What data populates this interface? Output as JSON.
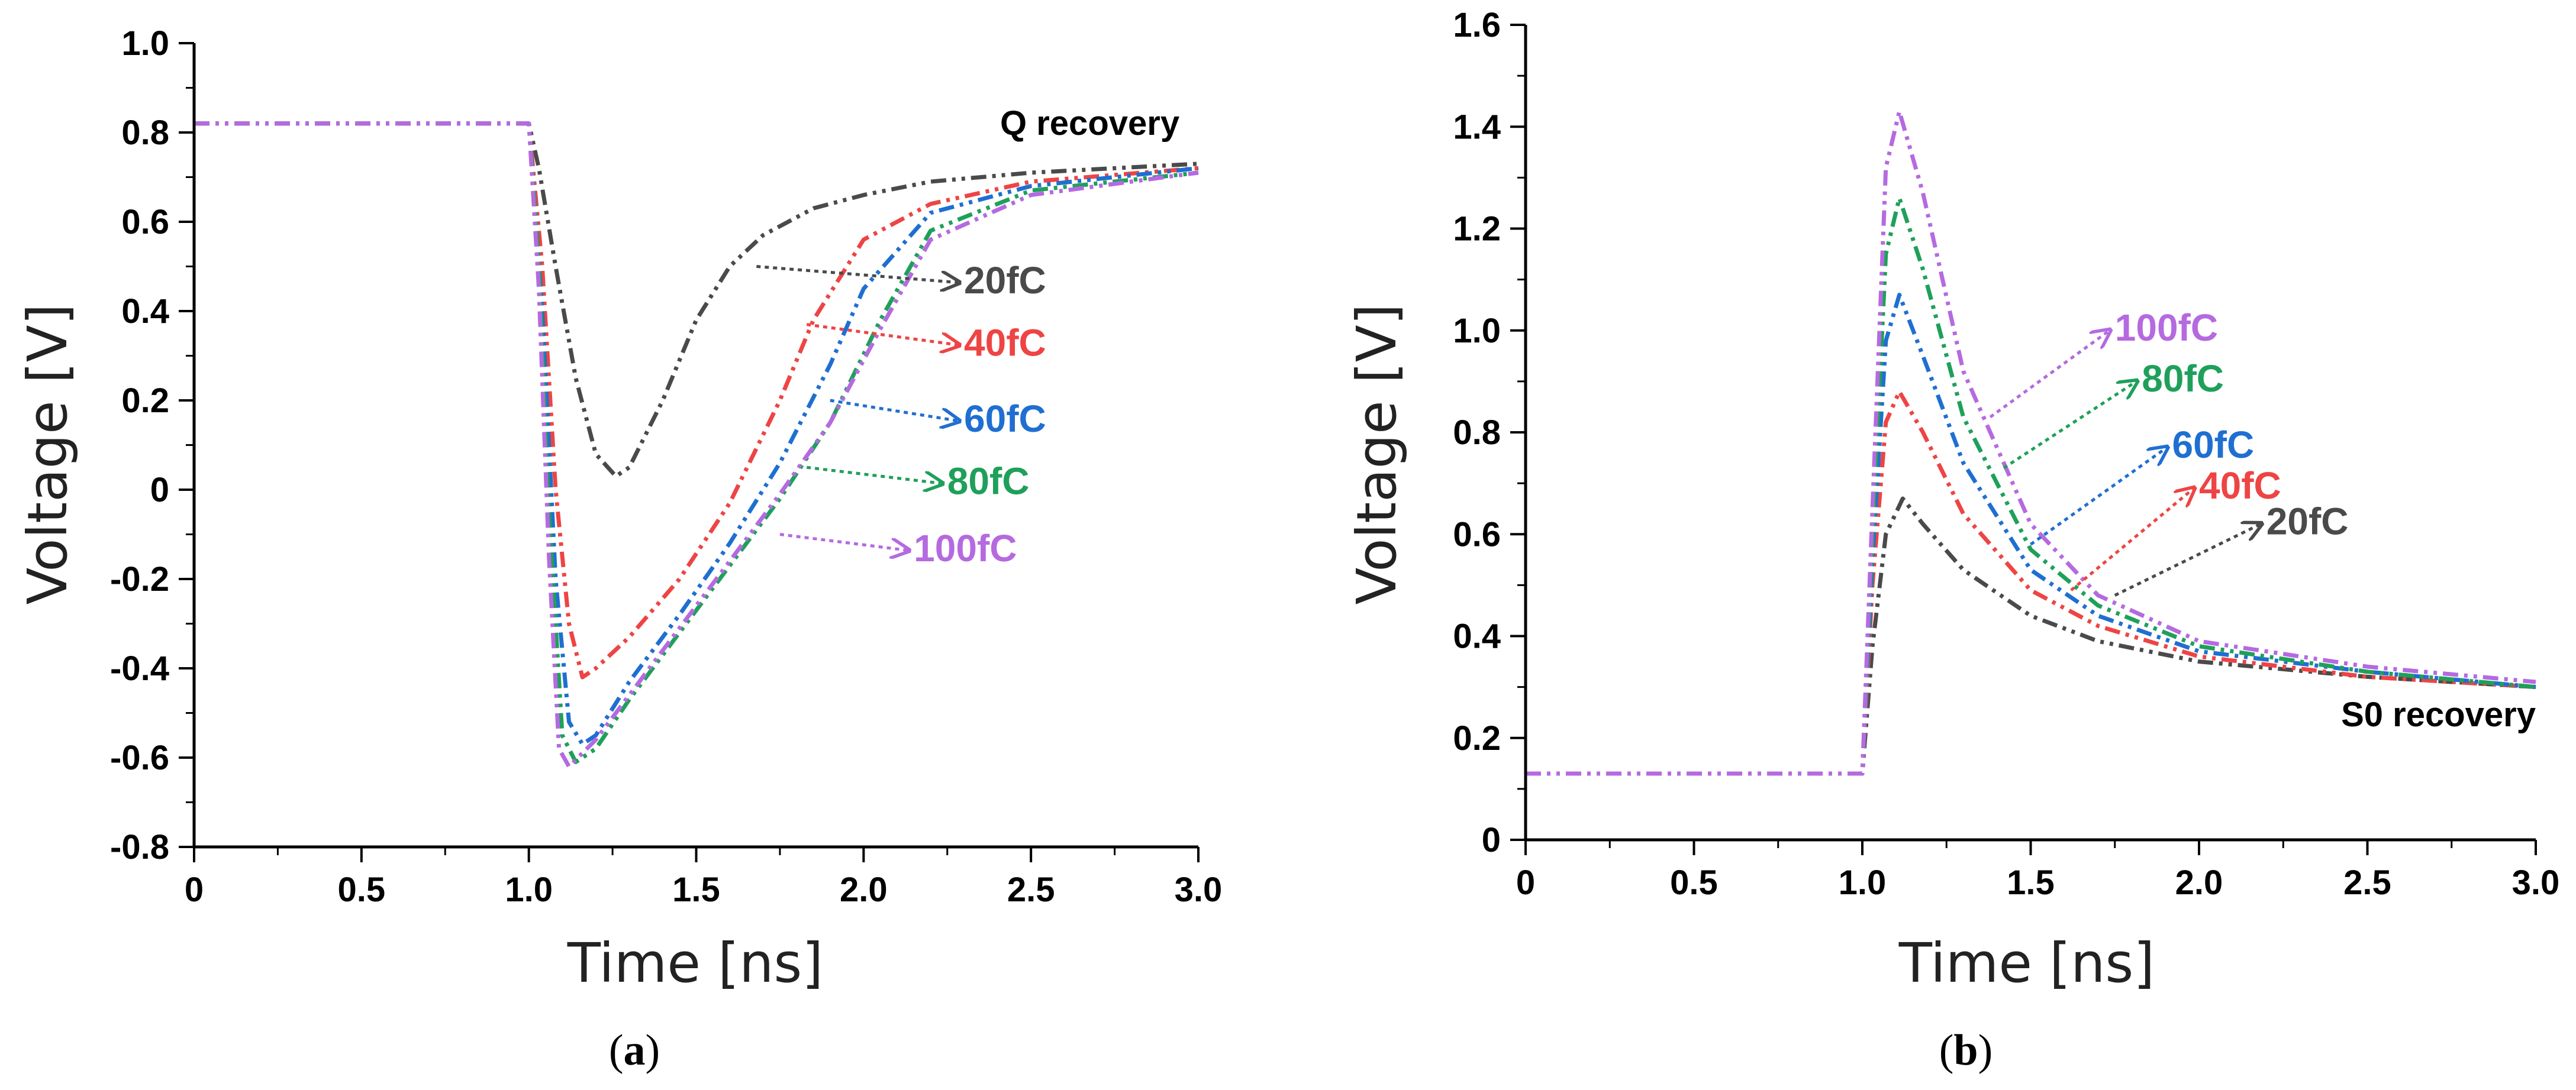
{
  "chart_data": [
    {
      "type": "line",
      "panel": "(a)",
      "panel_letter": "a",
      "annotation": "Q recovery",
      "xlabel": "Time [ns]",
      "ylabel": "Voltage [V]",
      "xlim": [
        0,
        3.0
      ],
      "ylim": [
        -0.8,
        1.0
      ],
      "x_ticks": [
        0,
        0.5,
        1.0,
        1.5,
        2.0,
        2.5,
        3.0
      ],
      "x_tick_labels": [
        "0",
        "0.5",
        "1.0",
        "1.5",
        "2.0",
        "2.5",
        "3.0"
      ],
      "y_ticks": [
        -0.8,
        -0.6,
        -0.4,
        -0.2,
        0,
        0.2,
        0.4,
        0.6,
        0.8,
        1.0
      ],
      "y_tick_labels": [
        "-0.8",
        "-0.6",
        "-0.4",
        "-0.2",
        "0",
        "0.2",
        "0.4",
        "0.6",
        "0.8",
        "1.0"
      ],
      "series": [
        {
          "name": "20fC",
          "color": "#4a4a4a",
          "x": [
            0,
            1.0,
            1.03,
            1.08,
            1.14,
            1.2,
            1.26,
            1.3,
            1.4,
            1.5,
            1.6,
            1.7,
            1.85,
            2.0,
            2.2,
            2.5,
            3.0
          ],
          "y": [
            0.82,
            0.82,
            0.72,
            0.5,
            0.25,
            0.08,
            0.03,
            0.05,
            0.2,
            0.38,
            0.5,
            0.57,
            0.63,
            0.66,
            0.69,
            0.71,
            0.73
          ],
          "label_anchor": [
            1.68,
            0.5
          ],
          "label_pos": [
            2.3,
            0.44
          ]
        },
        {
          "name": "40fC",
          "color": "#ee4444",
          "x": [
            0,
            1.0,
            1.04,
            1.08,
            1.12,
            1.16,
            1.2,
            1.3,
            1.45,
            1.6,
            1.75,
            1.85,
            2.0,
            2.2,
            2.5,
            3.0
          ],
          "y": [
            0.82,
            0.82,
            0.5,
            0.0,
            -0.3,
            -0.42,
            -0.4,
            -0.33,
            -0.2,
            -0.03,
            0.2,
            0.38,
            0.56,
            0.64,
            0.69,
            0.72
          ],
          "label_anchor": [
            1.83,
            0.37
          ],
          "label_pos": [
            2.3,
            0.3
          ]
        },
        {
          "name": "60fC",
          "color": "#1f6fd1",
          "x": [
            0,
            1.0,
            1.04,
            1.08,
            1.12,
            1.16,
            1.2,
            1.3,
            1.45,
            1.6,
            1.75,
            1.9,
            2.0,
            2.2,
            2.5,
            3.0
          ],
          "y": [
            0.82,
            0.82,
            0.4,
            -0.2,
            -0.52,
            -0.57,
            -0.55,
            -0.43,
            -0.28,
            -0.12,
            0.06,
            0.28,
            0.45,
            0.62,
            0.68,
            0.72
          ],
          "label_anchor": [
            1.9,
            0.2
          ],
          "label_pos": [
            2.3,
            0.13
          ]
        },
        {
          "name": "80fC",
          "color": "#1fa05a",
          "x": [
            0,
            1.0,
            1.03,
            1.06,
            1.1,
            1.14,
            1.2,
            1.3,
            1.45,
            1.6,
            1.75,
            1.9,
            2.05,
            2.2,
            2.5,
            3.0
          ],
          "y": [
            0.82,
            0.82,
            0.5,
            -0.05,
            -0.55,
            -0.61,
            -0.58,
            -0.47,
            -0.32,
            -0.17,
            -0.02,
            0.15,
            0.38,
            0.58,
            0.67,
            0.71
          ],
          "label_anchor": [
            1.83,
            0.05
          ],
          "label_pos": [
            2.25,
            -0.01
          ]
        },
        {
          "name": "100fC",
          "color": "#b56ae0",
          "x": [
            0,
            1.0,
            1.03,
            1.06,
            1.09,
            1.12,
            1.2,
            1.3,
            1.45,
            1.6,
            1.75,
            1.9,
            2.05,
            2.2,
            2.5,
            3.0
          ],
          "y": [
            0.82,
            0.82,
            0.45,
            -0.15,
            -0.58,
            -0.62,
            -0.56,
            -0.46,
            -0.31,
            -0.16,
            -0.01,
            0.15,
            0.36,
            0.56,
            0.66,
            0.71
          ],
          "label_anchor": [
            1.75,
            -0.1
          ],
          "label_pos": [
            2.15,
            -0.16
          ]
        }
      ]
    },
    {
      "type": "line",
      "panel": "(b)",
      "panel_letter": "b",
      "annotation": "S0 recovery",
      "xlabel": "Time [ns]",
      "ylabel": "Voltage [V]",
      "xlim": [
        0,
        3.0
      ],
      "ylim": [
        0,
        1.6
      ],
      "x_ticks": [
        0,
        0.5,
        1.0,
        1.5,
        2.0,
        2.5,
        3.0
      ],
      "x_tick_labels": [
        "0",
        "0.5",
        "1.0",
        "1.5",
        "2.0",
        "2.5",
        "3.0"
      ],
      "y_ticks": [
        0,
        0.2,
        0.4,
        0.6,
        0.8,
        1.0,
        1.2,
        1.4,
        1.6
      ],
      "y_tick_labels": [
        "0",
        "0.2",
        "0.4",
        "0.6",
        "0.8",
        "1.0",
        "1.2",
        "1.4",
        "1.6"
      ],
      "series": [
        {
          "name": "20fC",
          "color": "#4a4a4a",
          "x": [
            0,
            1.0,
            1.03,
            1.07,
            1.12,
            1.18,
            1.3,
            1.5,
            1.7,
            2.0,
            2.5,
            3.0
          ],
          "y": [
            0.13,
            0.13,
            0.38,
            0.6,
            0.67,
            0.62,
            0.53,
            0.44,
            0.39,
            0.35,
            0.32,
            0.3
          ],
          "label_anchor": [
            1.75,
            0.48
          ],
          "label_pos": [
            2.2,
            0.6
          ]
        },
        {
          "name": "40fC",
          "color": "#ee4444",
          "x": [
            0,
            1.0,
            1.03,
            1.07,
            1.11,
            1.18,
            1.3,
            1.5,
            1.7,
            2.0,
            2.5,
            3.0
          ],
          "y": [
            0.13,
            0.13,
            0.5,
            0.82,
            0.88,
            0.8,
            0.64,
            0.49,
            0.42,
            0.36,
            0.32,
            0.3
          ],
          "label_anchor": [
            1.62,
            0.49
          ],
          "label_pos": [
            2.0,
            0.67
          ]
        },
        {
          "name": "60fC",
          "color": "#1f6fd1",
          "x": [
            0,
            1.0,
            1.03,
            1.07,
            1.11,
            1.18,
            1.3,
            1.5,
            1.7,
            2.0,
            2.5,
            3.0
          ],
          "y": [
            0.13,
            0.13,
            0.55,
            0.98,
            1.07,
            0.95,
            0.74,
            0.53,
            0.44,
            0.37,
            0.33,
            0.3
          ],
          "label_anchor": [
            1.5,
            0.58
          ],
          "label_pos": [
            1.92,
            0.75
          ]
        },
        {
          "name": "80fC",
          "color": "#1fa05a",
          "x": [
            0,
            1.0,
            1.03,
            1.07,
            1.11,
            1.18,
            1.3,
            1.5,
            1.7,
            2.0,
            2.5,
            3.0
          ],
          "y": [
            0.13,
            0.13,
            0.6,
            1.15,
            1.26,
            1.12,
            0.83,
            0.57,
            0.46,
            0.38,
            0.33,
            0.3
          ],
          "label_anchor": [
            1.42,
            0.73
          ],
          "label_pos": [
            1.83,
            0.88
          ]
        },
        {
          "name": "100fC",
          "color": "#b56ae0",
          "x": [
            0,
            1.0,
            1.03,
            1.07,
            1.11,
            1.18,
            1.3,
            1.5,
            1.7,
            2.0,
            2.5,
            3.0
          ],
          "y": [
            0.13,
            0.13,
            0.65,
            1.32,
            1.43,
            1.27,
            0.92,
            0.62,
            0.48,
            0.39,
            0.34,
            0.31
          ],
          "label_anchor": [
            1.38,
            0.83
          ],
          "label_pos": [
            1.75,
            0.98
          ]
        }
      ]
    }
  ]
}
